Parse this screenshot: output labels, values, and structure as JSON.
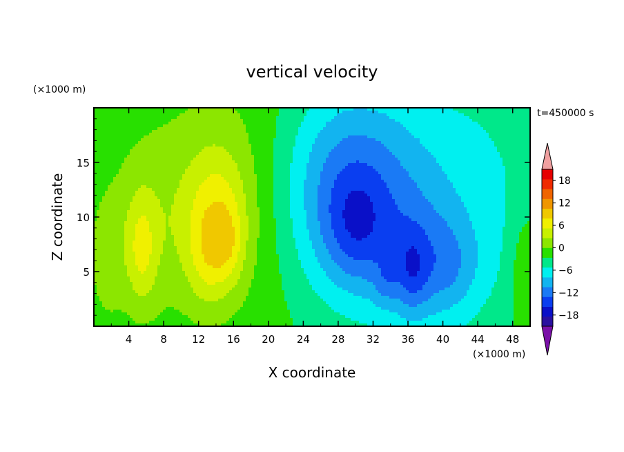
{
  "chart_data": {
    "type": "heatmap",
    "title": "vertical velocity",
    "xlabel": "X coordinate",
    "ylabel": "Z coordinate",
    "x_unit": "(×1000 m)",
    "y_unit": "(×1000 m)",
    "time_label": "t=450000 s",
    "xlim": [
      0,
      50
    ],
    "ylim": [
      0,
      20
    ],
    "xticks": [
      4,
      8,
      12,
      16,
      20,
      24,
      28,
      32,
      36,
      40,
      44,
      48
    ],
    "yticks": [
      5,
      10,
      15
    ],
    "colorbar": {
      "levels": [
        -21,
        -18,
        -15,
        -12,
        -9,
        -6,
        -3,
        0,
        3,
        6,
        9,
        12,
        15,
        18,
        21
      ],
      "tick_labels": [
        "18",
        "12",
        "6",
        "0",
        "−6",
        "−12",
        "−18"
      ],
      "tick_values": [
        18,
        12,
        6,
        0,
        -6,
        -12,
        -18
      ],
      "colors": [
        "#7a10a8",
        "#2a10a0",
        "#0a10c8",
        "#0a3ef0",
        "#1a7af5",
        "#12b4f0",
        "#00f0f0",
        "#00e88a",
        "#28e000",
        "#8ce600",
        "#c8f000",
        "#f0f000",
        "#f0c800",
        "#f09600",
        "#f06400",
        "#f02a00",
        "#e60000",
        "#f0a0a0"
      ]
    },
    "features": [
      {
        "x": 16,
        "z": 12,
        "sx": 7.5,
        "sz": 8.5,
        "value": 4
      },
      {
        "x": 6,
        "z": 9,
        "sx": 3.5,
        "sz": 6,
        "value": 3
      },
      {
        "x": 14,
        "z": 10,
        "sx": 2.5,
        "sz": 4.5,
        "value": 7
      },
      {
        "x": 13,
        "z": 6,
        "sx": 1.6,
        "sz": 3,
        "value": 4
      },
      {
        "x": 5.5,
        "z": 7,
        "sx": 1.2,
        "sz": 3.5,
        "value": 6
      },
      {
        "x": 15.5,
        "z": 7.5,
        "sx": 1.2,
        "sz": 2.5,
        "value": 4
      },
      {
        "x": 29,
        "z": 11,
        "sx": 5.5,
        "sz": 6.5,
        "value": -11
      },
      {
        "x": 30,
        "z": 9,
        "sx": 2.5,
        "sz": 3.5,
        "value": -5
      },
      {
        "x": 37,
        "z": 6,
        "sx": 3.5,
        "sz": 5,
        "value": -6
      },
      {
        "x": 36.5,
        "z": 5,
        "sx": 1.2,
        "sz": 2.5,
        "value": -5
      },
      {
        "x": 33.5,
        "z": 4,
        "sx": 1,
        "sz": 1.5,
        "value": -3
      },
      {
        "x": 41,
        "z": 5.5,
        "sx": 2.5,
        "sz": 3,
        "value": -4
      },
      {
        "x": 44,
        "z": 11,
        "sx": 6,
        "sz": 9,
        "value": -4
      },
      {
        "x": 31,
        "z": 17,
        "sx": 7,
        "sz": 5,
        "value": -3
      },
      {
        "x": 49.5,
        "z": 5,
        "sx": 1.2,
        "sz": 4,
        "value": 4
      },
      {
        "x": 1.5,
        "z": 6,
        "sx": 1.5,
        "sz": 4,
        "value": 3
      }
    ]
  }
}
